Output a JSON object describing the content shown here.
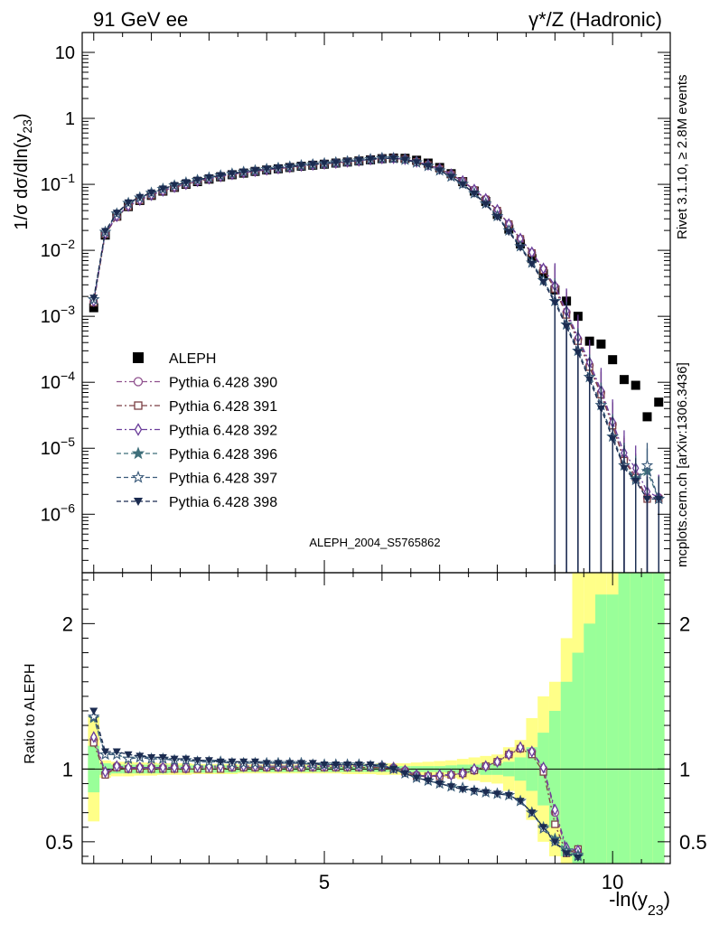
{
  "header": {
    "left": "91 GeV ee",
    "right": "γ*/Z (Hadronic)"
  },
  "side_labels": {
    "rivet": "Rivet 3.1.10, ≥ 2.8M events",
    "mcplots": "mcplots.cern.ch [arXiv:1306.3436]"
  },
  "watermark": "ALEPH_2004_S5765862",
  "chart_data": {
    "type": "scatter",
    "xlabel": "-ln(y23)",
    "ylabel_top": "1/σ dσ/dln(y23)",
    "ylabel_bottom": "Ratio to ALEPH",
    "xlim": [
      0.8,
      11.0
    ],
    "ylim_top": [
      1.3e-07,
      20
    ],
    "ylim_bottom": [
      0.35,
      2.35
    ],
    "yscale_top": "log",
    "x_ticks": [
      5,
      10
    ],
    "y_ticks_top": [
      "10",
      "1",
      "10^-1",
      "10^-2",
      "10^-3",
      "10^-4",
      "10^-5",
      "10^-6"
    ],
    "y_ticks_bottom": [
      "0.5",
      "1",
      "2"
    ],
    "legend_position": "middle-left",
    "x": [
      1.0,
      1.2,
      1.4,
      1.6,
      1.8,
      2.0,
      2.2,
      2.4,
      2.6,
      2.8,
      3.0,
      3.2,
      3.4,
      3.6,
      3.8,
      4.0,
      4.2,
      4.4,
      4.6,
      4.8,
      5.0,
      5.2,
      5.4,
      5.6,
      5.8,
      6.0,
      6.2,
      6.4,
      6.6,
      6.8,
      7.0,
      7.2,
      7.4,
      7.6,
      7.8,
      8.0,
      8.2,
      8.4,
      8.6,
      8.8,
      9.0,
      9.2,
      9.4,
      9.6,
      9.8,
      10.0,
      10.2,
      10.4,
      10.6,
      10.8
    ],
    "series": [
      {
        "name": "ALEPH",
        "color": "#000000",
        "marker": "square-filled",
        "values": [
          0.00135,
          0.017,
          0.033,
          0.046,
          0.057,
          0.068,
          0.079,
          0.09,
          0.1,
          0.11,
          0.12,
          0.13,
          0.14,
          0.148,
          0.157,
          0.165,
          0.172,
          0.18,
          0.188,
          0.195,
          0.202,
          0.21,
          0.218,
          0.226,
          0.235,
          0.245,
          0.25,
          0.248,
          0.232,
          0.21,
          0.18,
          0.145,
          0.11,
          0.079,
          0.055,
          0.035,
          0.021,
          0.0125,
          0.0075,
          0.0044,
          0.0025,
          0.0017,
          0.001,
          0.00042,
          0.00038,
          0.00022,
          0.00011,
          9e-05,
          3e-05,
          5e-05
        ]
      },
      {
        "name": "Pythia 6.428 390",
        "color": "#8e4f8d",
        "marker": "circle-open",
        "values": [
          0.00165,
          0.018,
          0.032,
          0.047,
          0.058,
          0.069,
          0.08,
          0.091,
          0.1,
          0.112,
          0.121,
          0.132,
          0.141,
          0.15,
          0.158,
          0.167,
          0.173,
          0.182,
          0.19,
          0.198,
          0.205,
          0.212,
          0.22,
          0.228,
          0.238,
          0.248,
          0.25,
          0.24,
          0.22,
          0.198,
          0.172,
          0.142,
          0.112,
          0.083,
          0.06,
          0.04,
          0.025,
          0.015,
          0.0092,
          0.0052,
          0.0028,
          0.00115,
          0.00045,
          0.00018,
          7e-05,
          2.3e-05,
          7e-06,
          3.8e-06,
          1.8e-06,
          1.8e-06
        ]
      },
      {
        "name": "Pythia 6.428 391",
        "color": "#7b3f43",
        "marker": "square-open",
        "values": [
          0.0016,
          0.0175,
          0.032,
          0.046,
          0.057,
          0.068,
          0.079,
          0.09,
          0.1,
          0.111,
          0.121,
          0.131,
          0.141,
          0.15,
          0.158,
          0.166,
          0.173,
          0.181,
          0.19,
          0.197,
          0.204,
          0.211,
          0.219,
          0.227,
          0.237,
          0.247,
          0.249,
          0.24,
          0.219,
          0.197,
          0.171,
          0.141,
          0.111,
          0.082,
          0.059,
          0.04,
          0.025,
          0.0149,
          0.0091,
          0.005,
          0.0026,
          0.00105,
          0.00042,
          0.00017,
          6.5e-05,
          2.2e-05,
          6.5e-06,
          3.6e-06,
          1.7e-06,
          1.7e-06
        ]
      },
      {
        "name": "Pythia 6.428 392",
        "color": "#6a3d9a",
        "marker": "diamond-open",
        "values": [
          0.0017,
          0.018,
          0.033,
          0.047,
          0.058,
          0.069,
          0.08,
          0.091,
          0.101,
          0.112,
          0.122,
          0.132,
          0.142,
          0.151,
          0.159,
          0.167,
          0.174,
          0.182,
          0.191,
          0.198,
          0.205,
          0.212,
          0.22,
          0.228,
          0.238,
          0.248,
          0.25,
          0.241,
          0.22,
          0.198,
          0.172,
          0.142,
          0.112,
          0.083,
          0.06,
          0.041,
          0.025,
          0.015,
          0.0093,
          0.0053,
          0.0029,
          0.0012,
          0.00048,
          0.0002,
          7.5e-05,
          2.5e-05,
          8.5e-06,
          5e-06,
          2.2e-06,
          1.8e-06
        ]
      },
      {
        "name": "Pythia 6.428 396",
        "color": "#3f6f7a",
        "marker": "star-filled",
        "values": [
          0.0018,
          0.019,
          0.036,
          0.052,
          0.063,
          0.074,
          0.085,
          0.096,
          0.106,
          0.116,
          0.126,
          0.136,
          0.145,
          0.154,
          0.162,
          0.17,
          0.177,
          0.185,
          0.193,
          0.2,
          0.207,
          0.214,
          0.222,
          0.23,
          0.239,
          0.249,
          0.248,
          0.236,
          0.214,
          0.19,
          0.162,
          0.131,
          0.101,
          0.073,
          0.051,
          0.033,
          0.02,
          0.0115,
          0.0065,
          0.0035,
          0.0017,
          0.00075,
          0.0003,
          0.00012,
          4.5e-05,
          1.5e-05,
          5.5e-06,
          3.5e-06,
          4.5e-06,
          1.7e-06
        ]
      },
      {
        "name": "Pythia 6.428 397",
        "color": "#3a5a7a",
        "marker": "star-open",
        "values": [
          0.0018,
          0.019,
          0.036,
          0.052,
          0.063,
          0.074,
          0.085,
          0.096,
          0.106,
          0.116,
          0.126,
          0.136,
          0.145,
          0.154,
          0.162,
          0.17,
          0.177,
          0.185,
          0.193,
          0.2,
          0.207,
          0.214,
          0.222,
          0.23,
          0.239,
          0.249,
          0.248,
          0.236,
          0.214,
          0.19,
          0.162,
          0.131,
          0.101,
          0.073,
          0.051,
          0.033,
          0.02,
          0.0115,
          0.0065,
          0.0035,
          0.0017,
          0.00075,
          0.0003,
          0.00012,
          4.5e-05,
          1.5e-05,
          5.5e-06,
          3.3e-06,
          5.5e-06,
          1.7e-06
        ]
      },
      {
        "name": "Pythia 6.428 398",
        "color": "#1b2b50",
        "marker": "triangle-down-filled",
        "values": [
          0.0019,
          0.0195,
          0.037,
          0.053,
          0.064,
          0.075,
          0.086,
          0.097,
          0.107,
          0.117,
          0.127,
          0.137,
          0.146,
          0.155,
          0.163,
          0.171,
          0.178,
          0.186,
          0.194,
          0.201,
          0.208,
          0.215,
          0.223,
          0.231,
          0.24,
          0.25,
          0.249,
          0.237,
          0.215,
          0.19,
          0.162,
          0.13,
          0.1,
          0.072,
          0.05,
          0.032,
          0.019,
          0.011,
          0.0062,
          0.0033,
          0.0016,
          0.0007,
          0.00028,
          0.00011,
          4e-05,
          1.4e-05,
          5e-06,
          3.2e-06,
          1.7e-06,
          1.7e-06
        ]
      }
    ],
    "ratio_x": [
      1.0,
      1.2,
      1.4,
      1.6,
      1.8,
      2.0,
      2.2,
      2.4,
      2.6,
      2.8,
      3.0,
      3.2,
      3.4,
      3.6,
      3.8,
      4.0,
      4.2,
      4.4,
      4.6,
      4.8,
      5.0,
      5.2,
      5.4,
      5.6,
      5.8,
      6.0,
      6.2,
      6.4,
      6.6,
      6.8,
      7.0,
      7.2,
      7.4,
      7.6,
      7.8,
      8.0,
      8.2,
      8.4,
      8.6,
      8.8,
      9.0,
      9.2,
      9.4
    ],
    "ratio_series": [
      {
        "name": "Pythia 6.428 390",
        "values": [
          1.2,
          0.97,
          1.02,
          1.0,
          1.01,
          1.01,
          1.01,
          1.01,
          1.0,
          1.01,
          1.01,
          1.01,
          1.01,
          1.01,
          1.01,
          1.01,
          1.01,
          1.01,
          1.01,
          1.02,
          1.02,
          1.02,
          1.02,
          1.02,
          1.02,
          1.02,
          1.01,
          0.99,
          0.96,
          0.95,
          0.95,
          0.96,
          0.97,
          0.99,
          1.02,
          1.05,
          1.1,
          1.14,
          1.12,
          1.0,
          0.7,
          0.44,
          0.42
        ]
      },
      {
        "name": "Pythia 6.428 391",
        "values": [
          1.18,
          0.96,
          1.01,
          1.0,
          1.0,
          1.0,
          1.0,
          1.0,
          1.0,
          1.0,
          1.0,
          1.0,
          1.01,
          1.01,
          1.01,
          1.01,
          1.01,
          1.01,
          1.01,
          1.01,
          1.01,
          1.01,
          1.01,
          1.01,
          1.01,
          1.01,
          1.0,
          0.98,
          0.95,
          0.95,
          0.95,
          0.96,
          0.97,
          0.99,
          1.02,
          1.05,
          1.1,
          1.14,
          1.1,
          0.98,
          0.62,
          0.42,
          0.45
        ]
      },
      {
        "name": "Pythia 6.428 392",
        "values": [
          1.22,
          0.98,
          1.02,
          1.01,
          1.01,
          1.01,
          1.01,
          1.01,
          1.01,
          1.02,
          1.02,
          1.02,
          1.02,
          1.02,
          1.02,
          1.02,
          1.02,
          1.02,
          1.02,
          1.02,
          1.02,
          1.02,
          1.02,
          1.02,
          1.02,
          1.02,
          1.01,
          0.99,
          0.96,
          0.95,
          0.96,
          0.96,
          0.97,
          1.0,
          1.02,
          1.05,
          1.1,
          1.15,
          1.12,
          1.01,
          0.72,
          0.46,
          0.44
        ]
      },
      {
        "name": "Pythia 6.428 396",
        "values": [
          1.35,
          1.1,
          1.1,
          1.07,
          1.08,
          1.07,
          1.07,
          1.06,
          1.06,
          1.05,
          1.05,
          1.05,
          1.04,
          1.04,
          1.04,
          1.04,
          1.04,
          1.04,
          1.04,
          1.03,
          1.03,
          1.03,
          1.03,
          1.03,
          1.02,
          1.02,
          1.0,
          0.97,
          0.94,
          0.92,
          0.9,
          0.88,
          0.87,
          0.85,
          0.84,
          0.83,
          0.82,
          0.78,
          0.7,
          0.6,
          0.52,
          0.44,
          0.41
        ]
      },
      {
        "name": "Pythia 6.428 397",
        "values": [
          1.36,
          1.1,
          1.1,
          1.07,
          1.08,
          1.07,
          1.07,
          1.06,
          1.06,
          1.05,
          1.05,
          1.05,
          1.04,
          1.04,
          1.04,
          1.04,
          1.04,
          1.04,
          1.04,
          1.03,
          1.03,
          1.03,
          1.03,
          1.03,
          1.02,
          1.02,
          1.0,
          0.97,
          0.94,
          0.92,
          0.9,
          0.88,
          0.87,
          0.85,
          0.84,
          0.83,
          0.82,
          0.78,
          0.7,
          0.59,
          0.5,
          0.43,
          0.4
        ]
      },
      {
        "name": "Pythia 6.428 398",
        "values": [
          1.4,
          1.12,
          1.12,
          1.1,
          1.09,
          1.08,
          1.08,
          1.07,
          1.07,
          1.06,
          1.06,
          1.05,
          1.05,
          1.05,
          1.05,
          1.04,
          1.04,
          1.04,
          1.04,
          1.04,
          1.03,
          1.03,
          1.03,
          1.03,
          1.03,
          1.02,
          1.0,
          0.97,
          0.94,
          0.92,
          0.9,
          0.88,
          0.86,
          0.85,
          0.84,
          0.83,
          0.82,
          0.78,
          0.7,
          0.6,
          0.5,
          0.42,
          0.39
        ]
      }
    ],
    "band_edges": [
      0.9,
      1.1,
      1.3,
      1.5,
      1.7,
      1.9,
      2.1,
      2.3,
      2.5,
      2.7,
      2.9,
      3.1,
      3.3,
      3.5,
      3.7,
      3.9,
      4.1,
      4.3,
      4.5,
      4.7,
      4.9,
      5.1,
      5.3,
      5.5,
      5.7,
      5.9,
      6.1,
      6.3,
      6.5,
      6.7,
      6.9,
      7.1,
      7.3,
      7.5,
      7.7,
      7.9,
      8.1,
      8.3,
      8.5,
      8.7,
      8.9,
      9.1,
      9.3,
      9.5,
      9.7,
      9.9,
      10.1,
      10.3,
      10.5,
      10.7,
      10.9
    ],
    "band_stat": [
      0.16,
      0.04,
      0.03,
      0.03,
      0.03,
      0.03,
      0.03,
      0.025,
      0.025,
      0.025,
      0.025,
      0.025,
      0.025,
      0.02,
      0.02,
      0.02,
      0.02,
      0.02,
      0.02,
      0.02,
      0.02,
      0.02,
      0.02,
      0.02,
      0.02,
      0.02,
      0.02,
      0.02,
      0.02,
      0.02,
      0.02,
      0.025,
      0.03,
      0.03,
      0.04,
      0.04,
      0.05,
      0.08,
      0.15,
      0.25,
      0.4,
      0.6,
      0.8,
      1.0,
      1.2,
      1.2,
      1.35,
      1.35,
      1.35,
      1.35
    ],
    "band_total": [
      0.36,
      0.06,
      0.05,
      0.05,
      0.045,
      0.045,
      0.04,
      0.04,
      0.04,
      0.035,
      0.035,
      0.035,
      0.035,
      0.03,
      0.03,
      0.03,
      0.03,
      0.03,
      0.03,
      0.03,
      0.03,
      0.03,
      0.035,
      0.035,
      0.035,
      0.04,
      0.04,
      0.04,
      0.045,
      0.05,
      0.055,
      0.06,
      0.07,
      0.08,
      0.09,
      0.1,
      0.15,
      0.2,
      0.35,
      0.5,
      0.6,
      0.9,
      1.35,
      1.35,
      1.35,
      1.35,
      1.35,
      1.35,
      1.35,
      1.35
    ]
  }
}
